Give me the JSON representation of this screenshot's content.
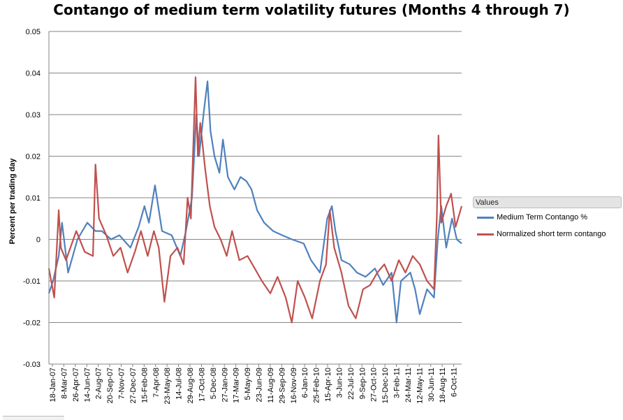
{
  "chart_data": {
    "type": "line",
    "title": "Contango of medium term volatility futures (Months 4 through 7)",
    "ylabel": "Percent per trading day",
    "xlabel": "",
    "ylim": [
      -0.03,
      0.05
    ],
    "yticks": [
      "0.05",
      "0.04",
      "0.03",
      "0.02",
      "0.01",
      "0",
      "-0.01",
      "-0.02",
      "-0.03"
    ],
    "xlim": [
      "2007-01-18",
      "2011-11-15"
    ],
    "xtick_labels": [
      "18-Jan-07",
      "8-Mar-07",
      "26-Apr-07",
      "14-Jun-07",
      "2-Aug-07",
      "20-Sep-07",
      "7-Nov-07",
      "27-Dec-07",
      "15-Feb-08",
      "7-Apr-08",
      "23-May-08",
      "14-Jul-08",
      "29-Aug-08",
      "17-Oct-08",
      "5-Dec-08",
      "27-Jan-09",
      "17-Mar-09",
      "5-May-09",
      "23-Jun-09",
      "11-Aug-09",
      "29-Sep-09",
      "16-Nov-09",
      "6-Jan-10",
      "25-Feb-10",
      "15-Apr-10",
      "3-Jun-10",
      "22-Jul-10",
      "9-Sep-10",
      "27-Oct-10",
      "15-Dec-10",
      "3-Feb-11",
      "24-Mar-11",
      "12-May-11",
      "30-Jun-11",
      "18-Aug-11",
      "6-Oct-11"
    ],
    "grid": true,
    "legend_title": "Values",
    "legend_position": "right",
    "series": [
      {
        "name": "Medium Term Contango %",
        "color": "#4f81bd",
        "x": [
          "2007-01-18",
          "2007-02-05",
          "2007-03-01",
          "2007-03-15",
          "2007-04-10",
          "2007-05-20",
          "2007-07-01",
          "2007-08-05",
          "2007-09-01",
          "2007-10-10",
          "2007-11-15",
          "2008-01-01",
          "2008-02-05",
          "2008-03-01",
          "2008-03-20",
          "2008-04-15",
          "2008-05-15",
          "2008-06-25",
          "2008-08-01",
          "2008-08-25",
          "2008-09-20",
          "2008-10-08",
          "2008-10-20",
          "2008-11-10",
          "2008-11-25",
          "2008-12-08",
          "2008-12-25",
          "2009-01-15",
          "2009-01-30",
          "2009-02-20",
          "2009-03-20",
          "2009-04-15",
          "2009-05-10",
          "2009-06-01",
          "2009-06-25",
          "2009-07-25",
          "2009-09-01",
          "2009-10-10",
          "2009-11-20",
          "2010-01-10",
          "2010-02-10",
          "2010-03-20",
          "2010-04-20",
          "2010-05-10",
          "2010-05-25",
          "2010-06-20",
          "2010-07-25",
          "2010-08-25",
          "2010-10-01",
          "2010-11-10",
          "2010-12-15",
          "2011-01-20",
          "2011-02-10",
          "2011-03-01",
          "2011-04-10",
          "2011-04-30",
          "2011-05-20",
          "2011-06-20",
          "2011-07-20",
          "2011-08-05",
          "2011-08-20",
          "2011-09-10",
          "2011-10-05",
          "2011-10-25",
          "2011-11-15"
        ],
        "values": [
          -0.013,
          -0.01,
          -0.004,
          0.004,
          -0.008,
          0.0,
          0.004,
          0.002,
          0.002,
          0.0,
          0.001,
          -0.002,
          0.003,
          0.008,
          0.004,
          0.013,
          0.002,
          0.001,
          -0.004,
          0.002,
          0.01,
          0.03,
          0.02,
          0.031,
          0.038,
          0.026,
          0.02,
          0.016,
          0.024,
          0.015,
          0.012,
          0.015,
          0.014,
          0.012,
          0.007,
          0.004,
          0.002,
          0.001,
          0.0,
          -0.001,
          -0.005,
          -0.008,
          0.005,
          0.008,
          0.002,
          -0.005,
          -0.006,
          -0.008,
          -0.009,
          -0.007,
          -0.011,
          -0.008,
          -0.02,
          -0.01,
          -0.008,
          -0.012,
          -0.018,
          -0.012,
          -0.014,
          0.0,
          0.008,
          -0.002,
          0.005,
          0.0,
          -0.001
        ]
      },
      {
        "name": "Normalized short term contango",
        "color": "#c0504d",
        "x": [
          "2007-01-18",
          "2007-02-10",
          "2007-03-01",
          "2007-03-10",
          "2007-04-01",
          "2007-05-15",
          "2007-06-20",
          "2007-07-25",
          "2007-08-05",
          "2007-08-20",
          "2007-09-20",
          "2007-10-20",
          "2007-11-20",
          "2007-12-20",
          "2008-01-20",
          "2008-02-15",
          "2008-03-15",
          "2008-04-10",
          "2008-05-01",
          "2008-05-25",
          "2008-06-20",
          "2008-07-20",
          "2008-08-15",
          "2008-09-01",
          "2008-09-15",
          "2008-10-05",
          "2008-10-15",
          "2008-10-25",
          "2008-11-15",
          "2008-12-05",
          "2008-12-25",
          "2009-01-20",
          "2009-02-15",
          "2009-03-10",
          "2009-04-10",
          "2009-05-15",
          "2009-06-15",
          "2009-07-15",
          "2009-08-20",
          "2009-09-20",
          "2009-10-25",
          "2009-11-20",
          "2009-12-15",
          "2010-01-15",
          "2010-02-15",
          "2010-03-20",
          "2010-04-15",
          "2010-05-01",
          "2010-05-20",
          "2010-06-20",
          "2010-07-20",
          "2010-08-20",
          "2010-09-20",
          "2010-10-20",
          "2010-11-20",
          "2010-12-20",
          "2011-01-20",
          "2011-02-20",
          "2011-03-20",
          "2011-04-20",
          "2011-05-20",
          "2011-06-20",
          "2011-07-20",
          "2011-08-01",
          "2011-08-08",
          "2011-08-20",
          "2011-09-10",
          "2011-10-01",
          "2011-10-20",
          "2011-11-15"
        ],
        "values": [
          -0.007,
          -0.014,
          0.007,
          -0.002,
          -0.005,
          0.002,
          -0.003,
          -0.004,
          0.018,
          0.005,
          0.001,
          -0.004,
          -0.002,
          -0.008,
          -0.003,
          0.002,
          -0.004,
          0.002,
          -0.002,
          -0.015,
          -0.004,
          -0.002,
          -0.006,
          0.01,
          0.005,
          0.039,
          0.02,
          0.028,
          0.017,
          0.008,
          0.003,
          0.0,
          -0.004,
          0.002,
          -0.005,
          -0.004,
          -0.007,
          -0.01,
          -0.013,
          -0.009,
          -0.014,
          -0.02,
          -0.01,
          -0.014,
          -0.019,
          -0.01,
          -0.006,
          0.007,
          -0.002,
          -0.008,
          -0.016,
          -0.019,
          -0.012,
          -0.011,
          -0.008,
          -0.006,
          -0.01,
          -0.005,
          -0.008,
          -0.004,
          -0.006,
          -0.01,
          -0.012,
          0.005,
          0.025,
          0.004,
          0.008,
          0.011,
          0.003,
          0.008
        ]
      }
    ]
  }
}
